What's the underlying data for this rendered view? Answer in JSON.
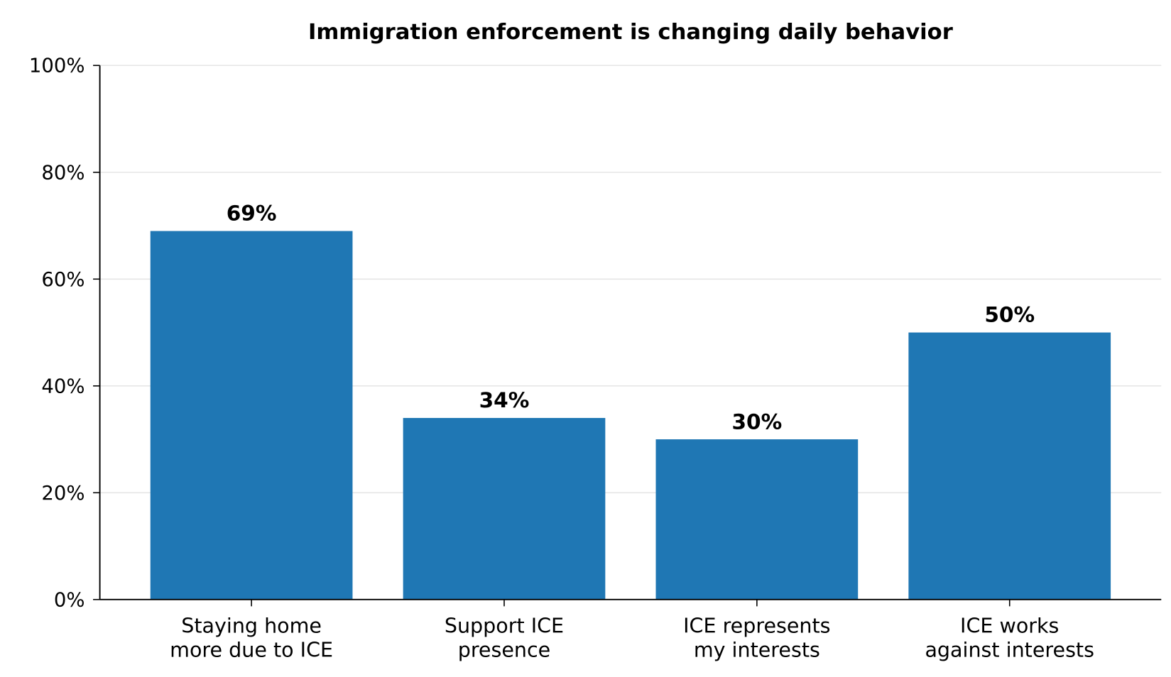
{
  "chart_data": {
    "type": "bar",
    "title": "Immigration enforcement is changing daily behavior",
    "categories": [
      "Staying home\nmore due to ICE",
      "Support ICE\npresence",
      "ICE represents\nmy interests",
      "ICE works\nagainst interests"
    ],
    "values": [
      69,
      34,
      30,
      50
    ],
    "value_labels": [
      "69%",
      "34%",
      "30%",
      "50%"
    ],
    "color": "#1f77b4",
    "ylim": [
      0,
      100
    ],
    "yticks": [
      {
        "value": 0,
        "label": "0%"
      },
      {
        "value": 20,
        "label": "20%"
      },
      {
        "value": 40,
        "label": "40%"
      },
      {
        "value": 60,
        "label": "60%"
      },
      {
        "value": 80,
        "label": "80%"
      },
      {
        "value": 100,
        "label": "100%"
      }
    ],
    "grid": true
  }
}
